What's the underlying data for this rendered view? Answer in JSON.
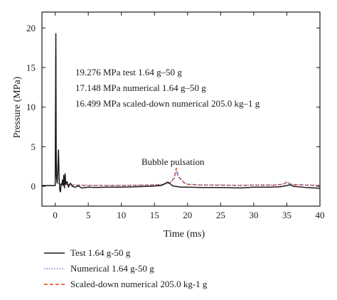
{
  "chart_data": {
    "type": "line",
    "xlabel": "Time (ms)",
    "ylabel": "Pressure (MPa)",
    "xlim": [
      -2,
      40
    ],
    "ylim": [
      -2.5,
      22
    ],
    "xticks": [
      0,
      5,
      10,
      15,
      20,
      25,
      30,
      35,
      40
    ],
    "yticks": [
      0,
      5,
      10,
      15,
      20
    ],
    "grid": false,
    "legend_position": "bottom-left, below plot",
    "annotations": [
      {
        "text": "19.276 MPa test 1.64 g–50 g"
      },
      {
        "text": "17.148 MPa numerical 1.64 g–50 g"
      },
      {
        "text": "16.499 MPa scaled-down numerical 205.0 kg–1 g"
      },
      {
        "text": "Bubble pulsation"
      }
    ],
    "series": [
      {
        "name": "Test 1.64 g-50 g",
        "color": "#1a1a1a",
        "style": "solid",
        "x": [
          -2,
          0,
          0.1,
          0.15,
          0.2,
          0.3,
          0.4,
          0.5,
          0.6,
          0.7,
          0.8,
          0.9,
          1.0,
          1.1,
          1.2,
          1.3,
          1.4,
          1.5,
          1.6,
          1.8,
          2.0,
          2.3,
          2.6,
          3.0,
          3.5,
          4,
          5,
          6,
          8,
          10,
          12,
          14,
          15,
          16,
          16.5,
          17,
          17.4,
          17.8,
          18.2,
          18.6,
          19,
          20,
          22,
          25,
          28,
          30,
          32,
          34,
          35,
          35.5,
          36,
          38,
          40
        ],
        "y": [
          0.1,
          0.1,
          19.276,
          5.0,
          1.2,
          0.4,
          2.2,
          4.6,
          0.8,
          -0.5,
          -0.7,
          0.3,
          0.2,
          0.8,
          0.1,
          1.4,
          -0.2,
          1.6,
          0.3,
          0.6,
          -0.1,
          0.4,
          0.0,
          -0.1,
          0.05,
          -0.2,
          -0.1,
          -0.15,
          -0.1,
          -0.1,
          -0.05,
          0.0,
          0.05,
          0.1,
          0.3,
          0.55,
          0.3,
          0.05,
          0.0,
          -0.05,
          -0.1,
          -0.1,
          -0.15,
          -0.15,
          -0.2,
          -0.1,
          -0.1,
          -0.05,
          0.1,
          0.2,
          0.0,
          -0.15,
          -0.25
        ]
      },
      {
        "name": "Numerical 1.64 g-50 g",
        "color": "#2a3fbf",
        "style": "dotted",
        "x": [
          -2,
          0,
          0.1,
          0.15,
          0.2,
          0.3,
          0.5,
          0.8,
          1.0,
          1.5,
          2,
          3,
          5,
          8,
          10,
          14,
          16,
          17,
          17.5,
          18,
          18.3,
          18.6,
          19,
          19.5,
          20,
          22,
          25,
          28,
          30,
          33,
          34.5,
          35,
          35.5,
          36,
          38,
          40
        ],
        "y": [
          0.1,
          0.1,
          17.148,
          3.0,
          1.0,
          0.6,
          0.4,
          0.3,
          0.3,
          0.3,
          0.25,
          0.2,
          0.15,
          0.15,
          0.15,
          0.2,
          0.25,
          0.4,
          0.6,
          1.0,
          2.0,
          1.2,
          1.0,
          0.5,
          0.3,
          0.2,
          0.2,
          0.15,
          0.2,
          0.2,
          0.3,
          0.6,
          0.3,
          0.25,
          0.2,
          0.15
        ]
      },
      {
        "name": "Scaled-down numerical 205.0 kg-1 g",
        "color": "#e0411c",
        "style": "dashed",
        "x": [
          -2,
          0,
          0.1,
          0.15,
          0.2,
          0.3,
          0.5,
          0.8,
          1.0,
          1.5,
          2,
          3,
          5,
          8,
          10,
          14,
          16,
          17,
          17.5,
          18,
          18.3,
          18.6,
          19,
          19.5,
          20,
          22,
          25,
          28,
          30,
          33,
          34.5,
          35,
          35.5,
          36,
          38,
          40
        ],
        "y": [
          0.1,
          0.1,
          16.499,
          2.8,
          0.9,
          0.5,
          0.3,
          0.25,
          0.25,
          0.25,
          0.2,
          0.15,
          0.1,
          0.1,
          0.1,
          0.15,
          0.2,
          0.35,
          0.5,
          1.2,
          2.3,
          1.3,
          0.8,
          0.4,
          0.25,
          0.15,
          0.15,
          0.1,
          0.15,
          0.15,
          0.25,
          0.55,
          0.3,
          0.2,
          0.15,
          0.1
        ]
      }
    ]
  }
}
